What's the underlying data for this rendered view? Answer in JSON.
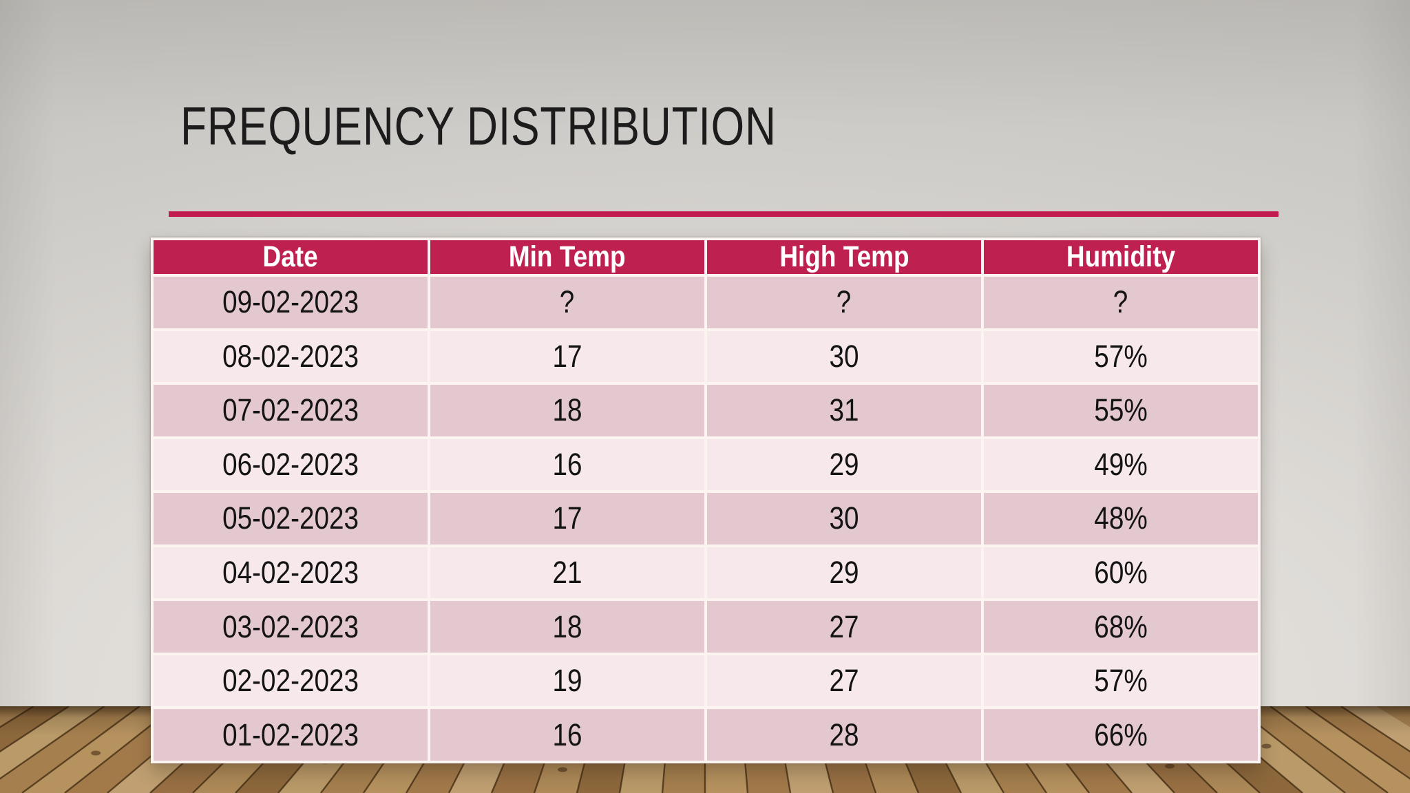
{
  "slide": {
    "title": "FREQUENCY DISTRIBUTION",
    "colors": {
      "accent": "#c21c4f",
      "title_text": "#1c1c1c"
    }
  },
  "table": {
    "headers": [
      "Date",
      "Min Temp",
      "High Temp",
      "Humidity"
    ],
    "rows": [
      [
        "09-02-2023",
        "?",
        "?",
        "?"
      ],
      [
        "08-02-2023",
        "17",
        "30",
        "57%"
      ],
      [
        "07-02-2023",
        "18",
        "31",
        "55%"
      ],
      [
        "06-02-2023",
        "16",
        "29",
        "49%"
      ],
      [
        "05-02-2023",
        "17",
        "30",
        "48%"
      ],
      [
        "04-02-2023",
        "21",
        "29",
        "60%"
      ],
      [
        "03-02-2023",
        "18",
        "27",
        "68%"
      ],
      [
        "02-02-2023",
        "19",
        "27",
        "57%"
      ],
      [
        "01-02-2023",
        "16",
        "28",
        "66%"
      ]
    ],
    "colors": {
      "header_bg": "#be2150",
      "header_text": "#ffffff",
      "row_dark": "#e4c8d0",
      "row_light": "#f6e8eb",
      "grid": "#fbf4f0",
      "body_text": "#141414"
    }
  }
}
